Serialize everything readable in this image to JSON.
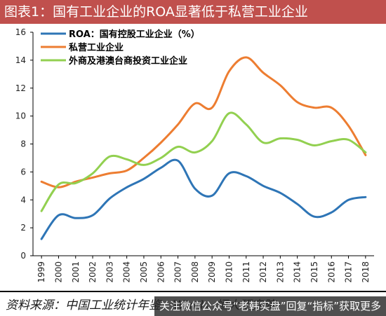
{
  "header": {
    "title": "图表1：国有工业企业的ROA显著低于私营工业企业"
  },
  "footer": {
    "source": "资料来源：中国工业统计年鉴，Wind，恒大研究院",
    "watermark": "关注微信公众号“老韩实盘”回复“指标”获取更多"
  },
  "chart_data": {
    "type": "line",
    "x": [
      "1999",
      "2000",
      "2001",
      "2002",
      "2003",
      "2004",
      "2005",
      "2006",
      "2007",
      "2008",
      "2009",
      "2010",
      "2011",
      "2012",
      "2013",
      "2014",
      "2015",
      "2016",
      "2017",
      "2018"
    ],
    "ylim": [
      0,
      16
    ],
    "yticks": [
      "0",
      "2",
      "4",
      "6",
      "8",
      "10",
      "12",
      "14",
      "16"
    ],
    "grid": false,
    "legend": "top-left",
    "series": [
      {
        "name": "ROA：国有控股工业企业（%）",
        "color": "#2e75b6",
        "values": [
          1.2,
          2.9,
          2.7,
          2.9,
          4.1,
          4.9,
          5.5,
          6.3,
          6.8,
          4.8,
          4.3,
          5.9,
          5.7,
          5.0,
          4.5,
          3.7,
          2.8,
          3.1,
          4.0,
          4.2
        ]
      },
      {
        "name": "私营工业企业",
        "color": "#ed7d31",
        "values": [
          5.3,
          4.9,
          5.3,
          5.6,
          5.9,
          6.1,
          7.0,
          8.1,
          9.4,
          10.9,
          10.6,
          13.2,
          14.2,
          13.1,
          12.2,
          11.0,
          10.6,
          10.6,
          9.3,
          7.2
        ]
      },
      {
        "name": "外商及港澳台商投资工业企业",
        "color": "#92d050",
        "values": [
          3.2,
          5.1,
          5.2,
          5.9,
          7.1,
          6.9,
          6.5,
          7.0,
          7.8,
          7.4,
          8.2,
          10.2,
          9.4,
          8.1,
          8.4,
          8.3,
          7.9,
          8.2,
          8.3,
          7.4
        ]
      }
    ]
  }
}
